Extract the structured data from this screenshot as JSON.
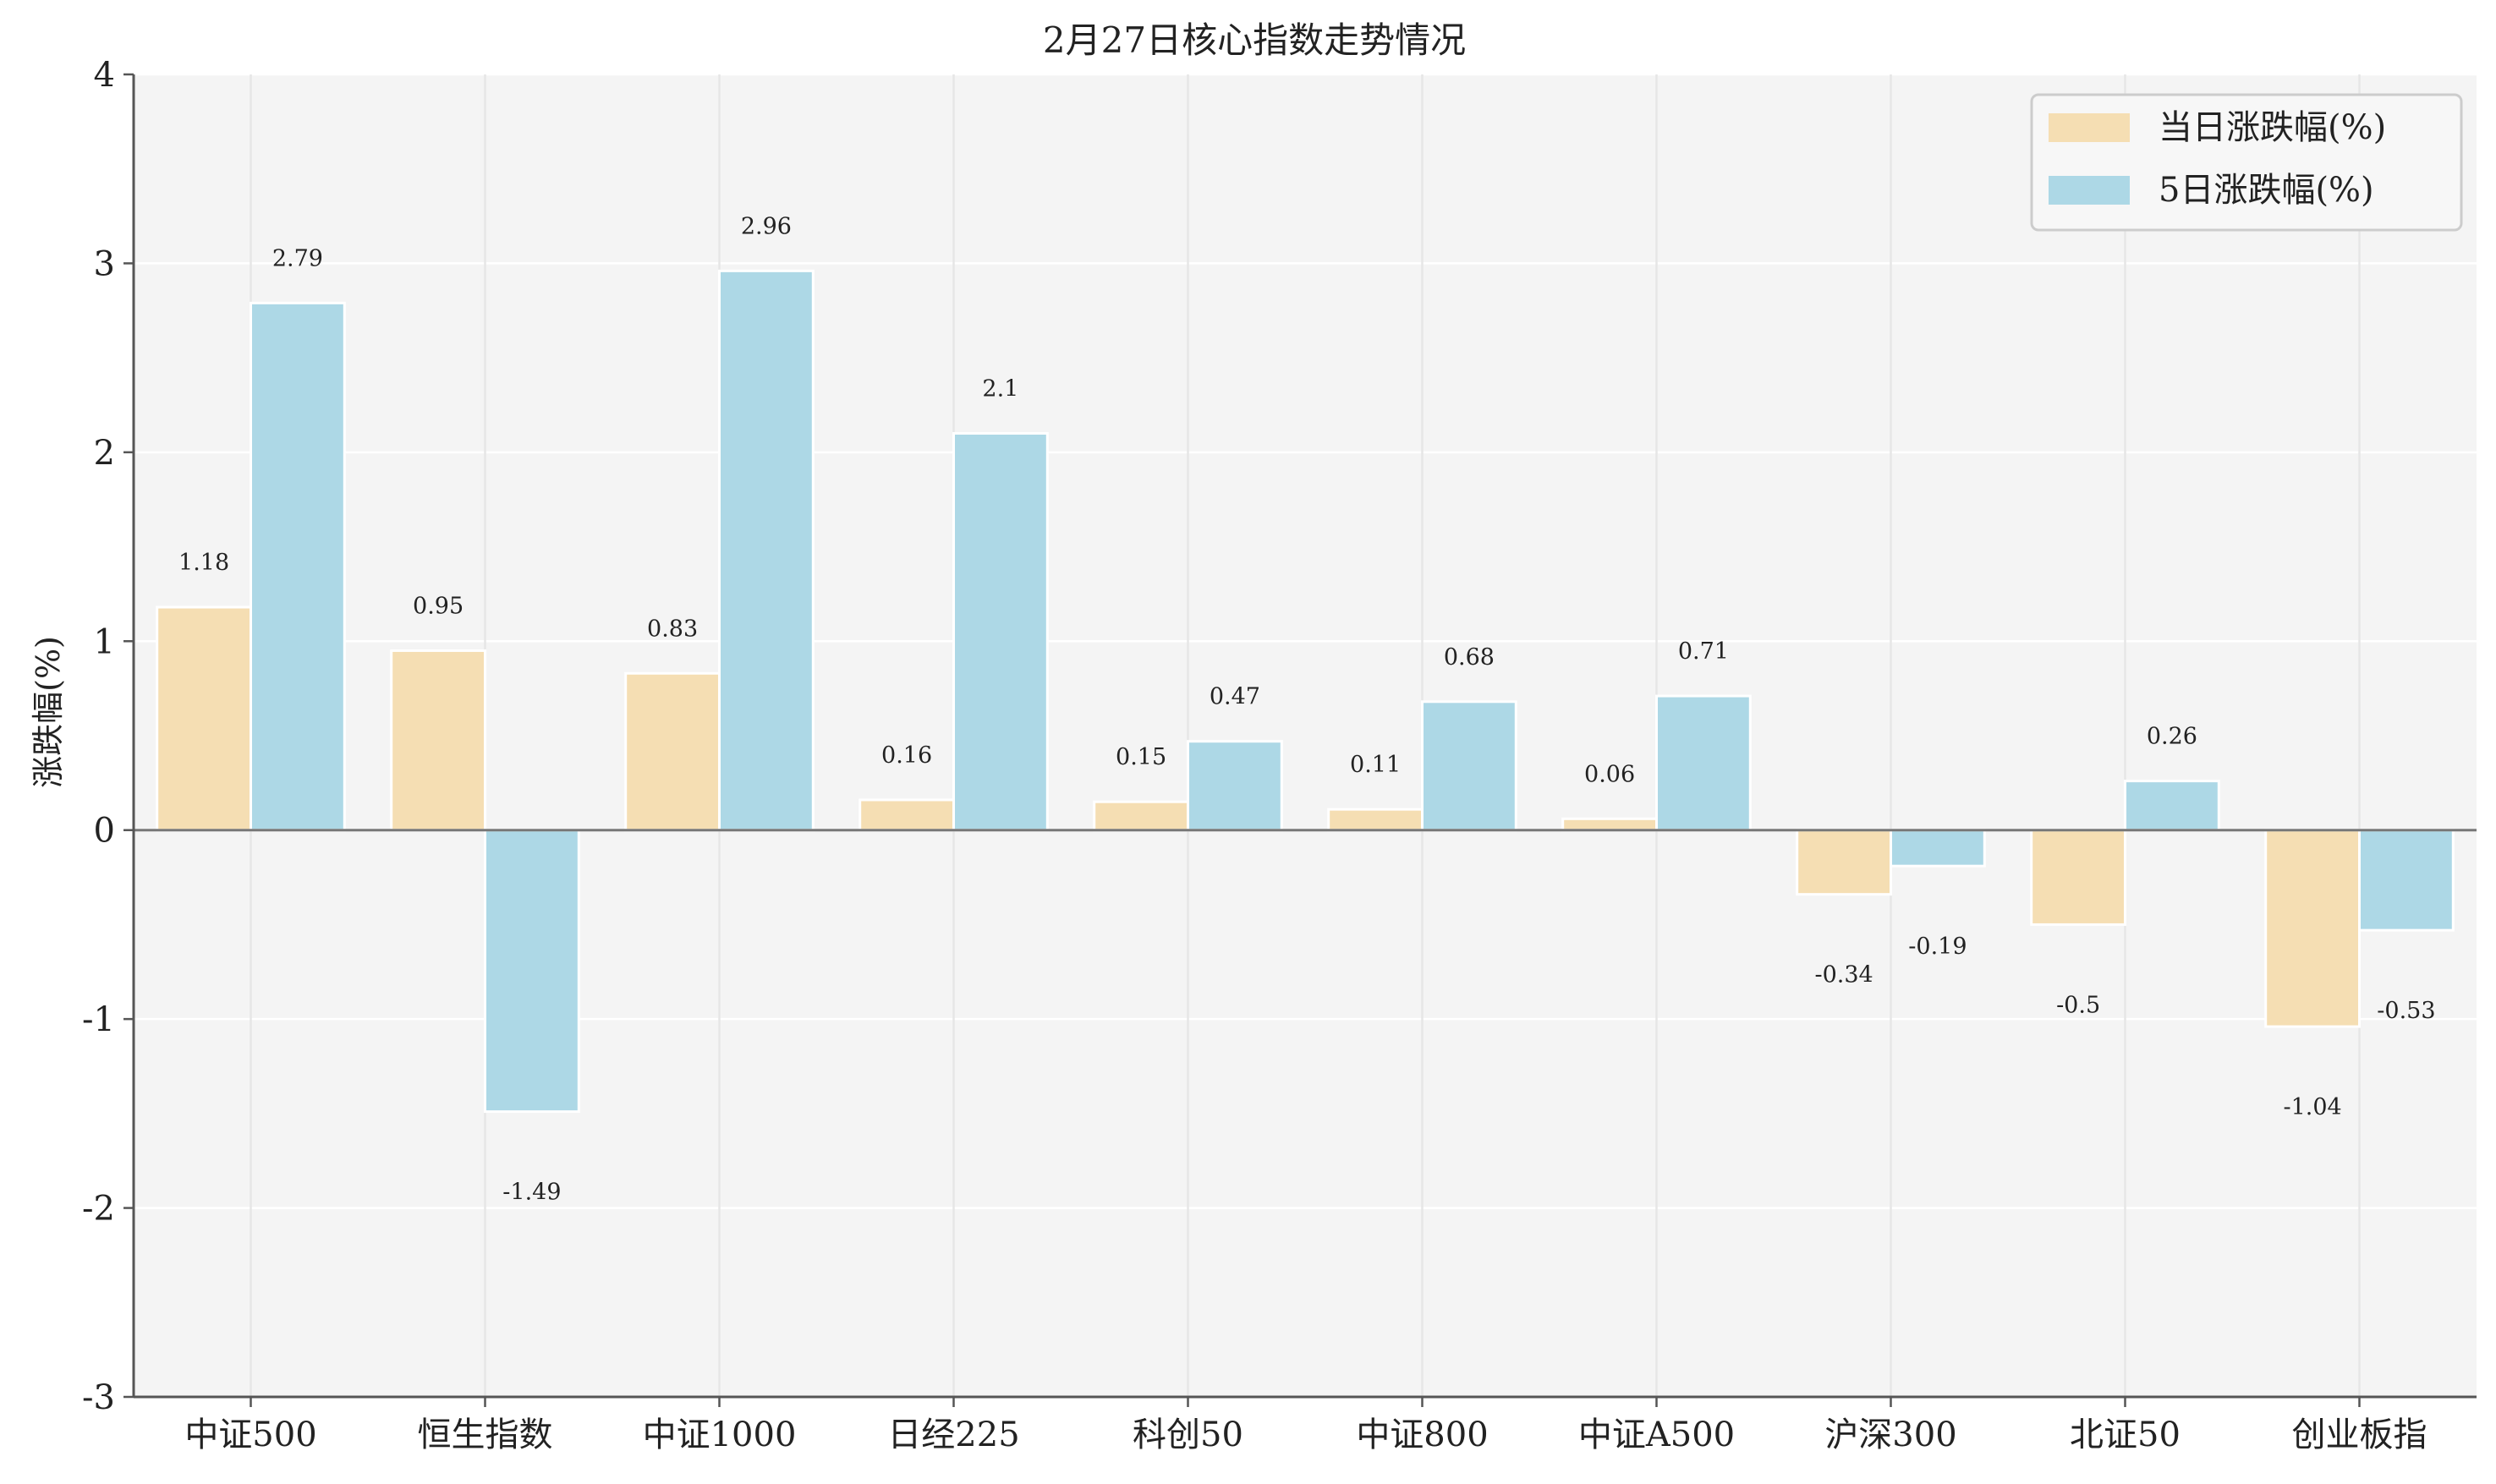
{
  "chart_data": {
    "type": "bar",
    "title": "2月27日核心指数走势情况",
    "xlabel": "",
    "ylabel": "涨跌幅(%)",
    "ylim": [
      -3,
      4
    ],
    "yticks": [
      -3,
      -2,
      -1,
      0,
      1,
      2,
      3,
      4
    ],
    "grid": true,
    "legend_position": "top-right",
    "categories": [
      "中证500",
      "恒生指数",
      "中证1000",
      "日经225",
      "科创50",
      "中证800",
      "中证A500",
      "沪深300",
      "北证50",
      "创业板指"
    ],
    "series": [
      {
        "name": "当日涨跌幅(%)",
        "color": "#f5deb3",
        "values": [
          1.18,
          0.95,
          0.83,
          0.16,
          0.15,
          0.11,
          0.06,
          -0.34,
          -0.5,
          -1.04
        ]
      },
      {
        "name": "5日涨跌幅(%)",
        "color": "#add8e6",
        "values": [
          2.79,
          -1.49,
          2.96,
          2.1,
          0.47,
          0.68,
          0.71,
          -0.19,
          0.26,
          -0.53
        ]
      }
    ]
  },
  "colors": {
    "plot_background": "#f4f4f4",
    "grid": "#ffffff",
    "zero_line": "#777777"
  }
}
